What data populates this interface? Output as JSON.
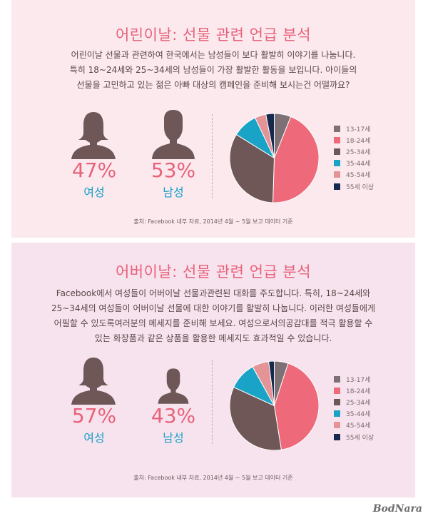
{
  "colors": {
    "accent": "#e8627a",
    "gender_label": "#18a0c8",
    "person": "#6f5758",
    "slices": [
      "#7d7175",
      "#ee6a7b",
      "#6f5758",
      "#19a3c6",
      "#e49396",
      "#16294f"
    ]
  },
  "icons": {
    "female": "female-person-icon",
    "male": "male-person-icon"
  },
  "sections": [
    {
      "title": "어린이날: 선물 관련 언급 분석",
      "description": [
        "어린이날 선물과 관련하여 한국에서는 남성들이 보다 활발히 이야기를 나눕니다.",
        "특히 18~24세와 25~34세의 남성들이 가장 활발한 활동을 보입니다. 아이들의",
        "선물을 고민하고 있는 젊은 아빠 대상의 캠페인을 준비해 보시는건 어떨까요?"
      ],
      "female": {
        "percent": "47%",
        "label": "여성"
      },
      "male": {
        "percent": "53%",
        "label": "남성"
      },
      "source": "출처: Facebook 내부 자료, 2014년 4월 ~ 5월 보고 데이터 기준"
    },
    {
      "title": "어버이날: 선물 관련 언급 분석",
      "description": [
        "Facebook에서 여성들이 어버이날 선물과관련된 대화를 주도합니다. 특히, 18~24세와",
        "25~34세의 여성들이  어버이날 선물에 대한 이야기를 활발히 나눕니다. 이러한 여성들에게",
        "어필할 수 있도록여러분의 메세지를 준비해 보세요. 여성으로서의공감대를 적극 활용할 수",
        "있는 화장품과 같은 상품을 활용한 메세지도 효과적일 수 있습니다."
      ],
      "female": {
        "percent": "57%",
        "label": "여성"
      },
      "male": {
        "percent": "43%",
        "label": "남성"
      },
      "source": "출처: Facebook 내부 자료, 2014년 4월 ~ 5월 보고 데이터 기준"
    }
  ],
  "chart_data": [
    {
      "type": "pie",
      "title": "",
      "legend_position": "right",
      "categories": [
        "13-17세",
        "18-24세",
        "25-34세",
        "35-44세",
        "45-54세",
        "55세 이상"
      ],
      "values": [
        6,
        44,
        33,
        9,
        4,
        3
      ]
    },
    {
      "type": "pie",
      "title": "",
      "legend_position": "right",
      "categories": [
        "13-17세",
        "18-24세",
        "25-34세",
        "35-44세",
        "45-54세",
        "55세 이상"
      ],
      "values": [
        5,
        42,
        34,
        10,
        6,
        2
      ]
    }
  ],
  "watermark": "BodNara"
}
